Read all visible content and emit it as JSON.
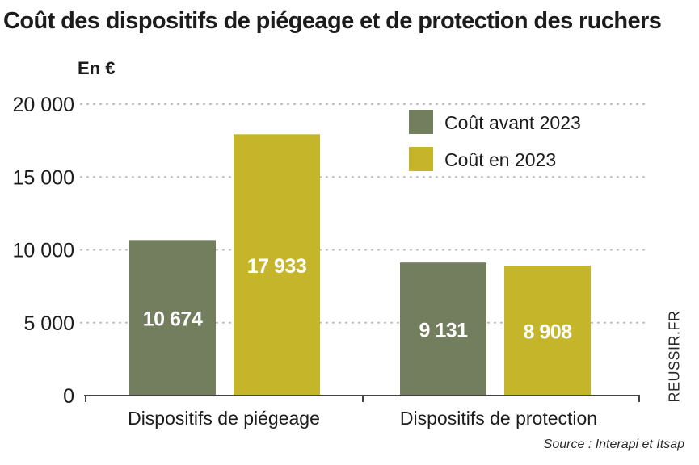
{
  "title": "Coût des dispositifs de piégeage et de protection des ruchers",
  "unit_label": "En €",
  "side_credit": "REUSSIR.FR",
  "source": "Source : Interapi et Itsap",
  "colors": {
    "before_2023": "#737e5e",
    "in_2023": "#c5b52a",
    "grid": "#b8b8b8",
    "bar_label": "#ffffff",
    "text": "#1c1c1c"
  },
  "chart_data": {
    "type": "bar",
    "title": "Coût des dispositifs de piégeage et de protection des ruchers",
    "ylabel": "En €",
    "xlabel": "",
    "ylim": [
      0,
      20000
    ],
    "yticks": [
      0,
      5000,
      10000,
      15000,
      20000
    ],
    "ytick_labels": [
      "0",
      "5 000",
      "10 000",
      "15 000",
      "20 000"
    ],
    "grid": true,
    "legend_position": "top-right",
    "categories": [
      "Dispositifs de piégeage",
      "Dispositifs de protection"
    ],
    "series": [
      {
        "name": "Coût avant 2023",
        "color": "#737e5e",
        "values": [
          10674,
          9131
        ],
        "labels": [
          "10 674",
          "9 131"
        ]
      },
      {
        "name": "Coût en 2023",
        "color": "#c5b52a",
        "values": [
          17933,
          8908
        ],
        "labels": [
          "17 933",
          "8 908"
        ]
      }
    ]
  }
}
